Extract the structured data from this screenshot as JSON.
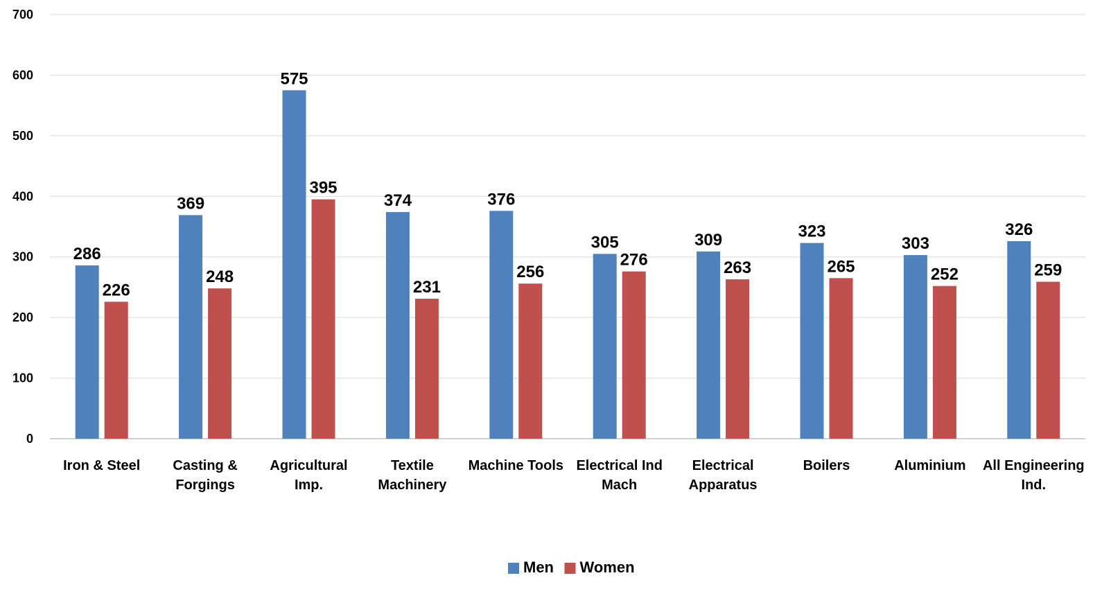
{
  "chart_data": {
    "type": "bar",
    "title": "",
    "xlabel": "",
    "ylabel": "",
    "ylim": [
      0,
      700
    ],
    "yticks": [
      0,
      100,
      200,
      300,
      400,
      500,
      600,
      700
    ],
    "grid": true,
    "legend_position": "bottom-center",
    "categories": [
      [
        "Iron & Steel"
      ],
      [
        "Casting &",
        "Forgings"
      ],
      [
        "Agricultural",
        "Imp."
      ],
      [
        "Textile",
        "Machinery"
      ],
      [
        "Machine Tools"
      ],
      [
        "Electrical Ind",
        "Mach"
      ],
      [
        "Electrical",
        "Apparatus"
      ],
      [
        "Boilers"
      ],
      [
        "Aluminium"
      ],
      [
        "All Engineering",
        "Ind."
      ]
    ],
    "series": [
      {
        "name": "Men",
        "color": "#4F81BD",
        "values": [
          286,
          369,
          575,
          374,
          376,
          305,
          309,
          323,
          303,
          326
        ]
      },
      {
        "name": "Women",
        "color": "#C0504D",
        "values": [
          226,
          248,
          395,
          231,
          256,
          276,
          263,
          265,
          252,
          259
        ]
      }
    ]
  }
}
